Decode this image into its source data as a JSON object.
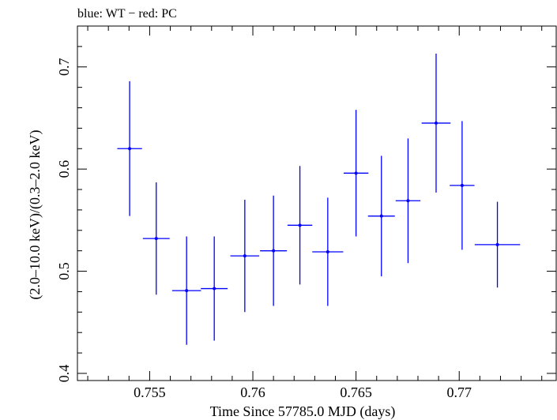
{
  "chart_data": {
    "type": "scatter",
    "title": "blue: WT − red: PC",
    "xlabel": "Time Since 57785.0 MJD (days)",
    "ylabel": "(2.0–10.0 keV)/(0.3–2.0 keV)",
    "xlim": [
      0.7515,
      0.7747
    ],
    "ylim": [
      0.393,
      0.74
    ],
    "xticks": [
      0.755,
      0.76,
      0.765,
      0.77
    ],
    "xtick_labels": [
      "0.755",
      "0.76",
      "0.765",
      "0.77"
    ],
    "yticks": [
      0.4,
      0.5,
      0.6,
      0.7
    ],
    "ytick_labels": [
      "0.4",
      "0.5",
      "0.6",
      "0.7"
    ],
    "grid": false,
    "series": [
      {
        "color": "#0000ff",
        "points": [
          {
            "x": 0.75403,
            "xerr": 0.0006,
            "y": 0.62,
            "yerr": 0.066
          },
          {
            "x": 0.75532,
            "xerr": 0.00065,
            "y": 0.532,
            "yerr": 0.055
          },
          {
            "x": 0.75679,
            "xerr": 0.0007,
            "y": 0.481,
            "yerr": 0.053
          },
          {
            "x": 0.75813,
            "xerr": 0.00065,
            "y": 0.483,
            "yerr": 0.051
          },
          {
            "x": 0.75961,
            "xerr": 0.0007,
            "y": 0.515,
            "yerr": 0.055
          },
          {
            "x": 0.761,
            "xerr": 0.00065,
            "y": 0.52,
            "yerr": 0.054
          },
          {
            "x": 0.76228,
            "xerr": 0.0006,
            "y": 0.545,
            "yerr": 0.058
          },
          {
            "x": 0.76363,
            "xerr": 0.00075,
            "y": 0.519,
            "yerr": 0.053
          },
          {
            "x": 0.765,
            "xerr": 0.0006,
            "y": 0.596,
            "yerr": 0.062
          },
          {
            "x": 0.76623,
            "xerr": 0.00065,
            "y": 0.554,
            "yerr": 0.059
          },
          {
            "x": 0.76752,
            "xerr": 0.0006,
            "y": 0.569,
            "yerr": 0.061
          },
          {
            "x": 0.76888,
            "xerr": 0.0007,
            "y": 0.645,
            "yerr": 0.068
          },
          {
            "x": 0.77014,
            "xerr": 0.0006,
            "y": 0.584,
            "yerr": 0.063
          },
          {
            "x": 0.77185,
            "xerr": 0.0011,
            "y": 0.526,
            "yerr": 0.042
          }
        ]
      }
    ]
  }
}
